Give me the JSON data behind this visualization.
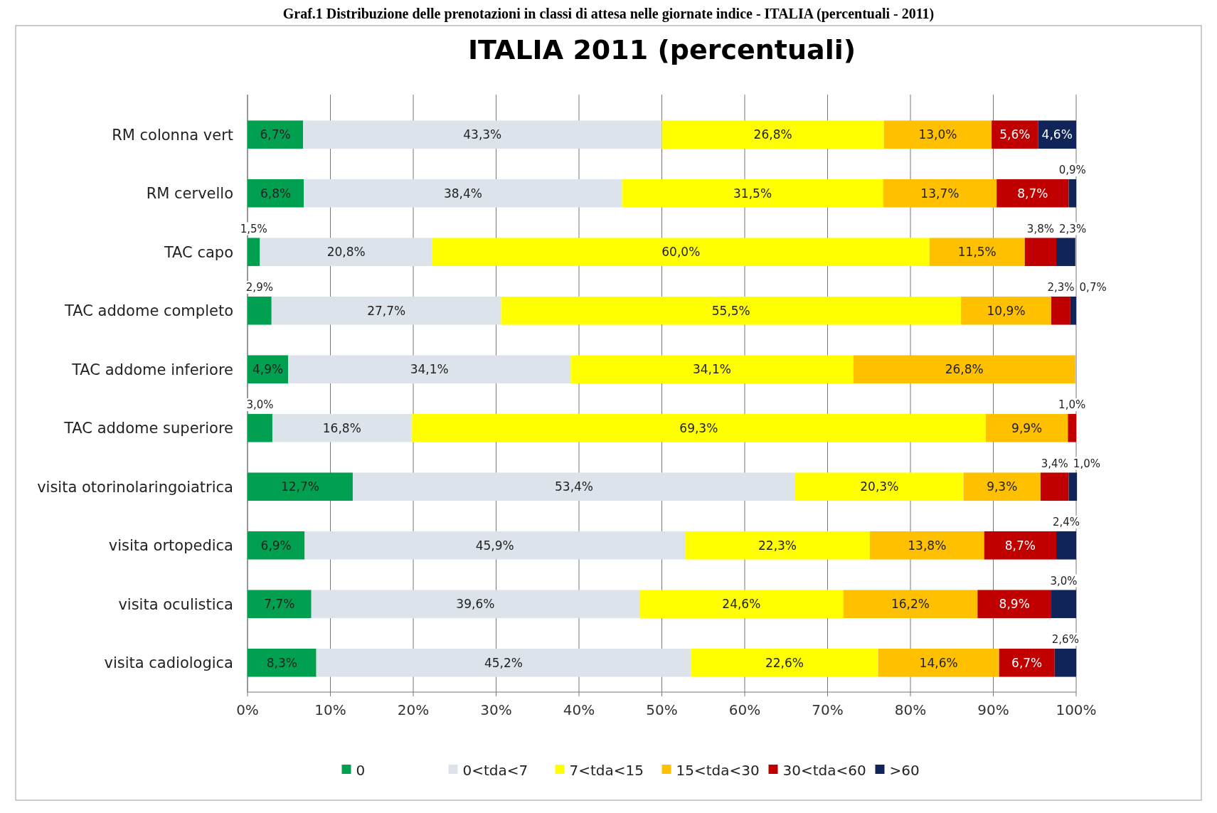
{
  "chart_data": {
    "type": "bar",
    "orientation": "horizontal",
    "stacked": true,
    "title": "ITALIA 2011 (percentuali)",
    "subtitle": "Graf.1 Distribuzione delle prenotazioni in classi di attesa nelle giornate indice - ITALIA (percentuali - 2011)",
    "categories": [
      "RM colonna vert",
      "RM cervello",
      "TAC capo",
      "TAC addome completo",
      "TAC addome inferiore",
      "TAC addome superiore",
      "visita otorinolaringoiatrica",
      "visita ortopedica",
      "visita oculistica",
      "visita cadiologica"
    ],
    "series": [
      {
        "name": "0",
        "color": "#00a050",
        "values": [
          6.7,
          6.8,
          1.5,
          2.9,
          4.9,
          3.0,
          12.7,
          6.9,
          7.7,
          8.3
        ],
        "value_labels": [
          "6,7%",
          "6,8%",
          "1,5%",
          "2,9%",
          "4,9%",
          "3,0%",
          "12,7%",
          "6,9%",
          "7,7%",
          "8,3%"
        ]
      },
      {
        "name": "0<tda<7",
        "color": "#dde3ea",
        "values": [
          43.3,
          38.4,
          20.8,
          27.7,
          34.1,
          16.8,
          53.4,
          45.9,
          39.6,
          45.2
        ],
        "value_labels": [
          "43,3%",
          "38,4%",
          "20,8%",
          "27,7%",
          "34,1%",
          "16,8%",
          "53,4%",
          "45,9%",
          "39,6%",
          "45,2%"
        ]
      },
      {
        "name": "7<tda<15",
        "color": "#ffff00",
        "values": [
          26.8,
          31.5,
          60.0,
          55.5,
          34.1,
          69.3,
          20.3,
          22.3,
          24.6,
          22.6
        ],
        "value_labels": [
          "26,8%",
          "31,5%",
          "60,0%",
          "55,5%",
          "34,1%",
          "69,3%",
          "20,3%",
          "22,3%",
          "24,6%",
          "22,6%"
        ]
      },
      {
        "name": "15<tda<30",
        "color": "#ffc000",
        "values": [
          13.0,
          13.7,
          11.5,
          10.9,
          26.8,
          9.9,
          9.3,
          13.8,
          16.2,
          14.6
        ],
        "value_labels": [
          "13,0%",
          "13,7%",
          "11,5%",
          "10,9%",
          "26,8%",
          "9,9%",
          "9,3%",
          "13,8%",
          "16,2%",
          "14,6%"
        ]
      },
      {
        "name": "30<tda<60",
        "color": "#c00000",
        "values": [
          5.6,
          8.7,
          3.8,
          2.3,
          null,
          1.0,
          3.4,
          8.7,
          8.9,
          6.7
        ],
        "value_labels": [
          "5,6%",
          "8,7%",
          "3,8%",
          "2,3%",
          null,
          "1,0%",
          "3,4%",
          "8,7%",
          "8,9%",
          "6,7%"
        ]
      },
      {
        "name": ">60",
        "color": "#10245a",
        "values": [
          4.6,
          0.9,
          2.3,
          0.7,
          null,
          null,
          1.0,
          2.4,
          3.0,
          2.6
        ],
        "value_labels": [
          "4,6%",
          "0,9%",
          "2,3%",
          "0,7%",
          null,
          null,
          "1,0%",
          "2,4%",
          "3,0%",
          "2,6%"
        ]
      }
    ],
    "xlim": [
      0,
      100
    ],
    "xticks": [
      {
        "value": 0,
        "label": "0%"
      },
      {
        "value": 10,
        "label": "10%"
      },
      {
        "value": 20,
        "label": "20%"
      },
      {
        "value": 30,
        "label": "30%"
      },
      {
        "value": 40,
        "label": "40%"
      },
      {
        "value": 50,
        "label": "50%"
      },
      {
        "value": 60,
        "label": "60%"
      },
      {
        "value": 70,
        "label": "70%"
      },
      {
        "value": 80,
        "label": "80%"
      },
      {
        "value": 90,
        "label": "90%"
      },
      {
        "value": 100,
        "label": "100%"
      }
    ],
    "grid": "x",
    "legend": "bottom"
  }
}
